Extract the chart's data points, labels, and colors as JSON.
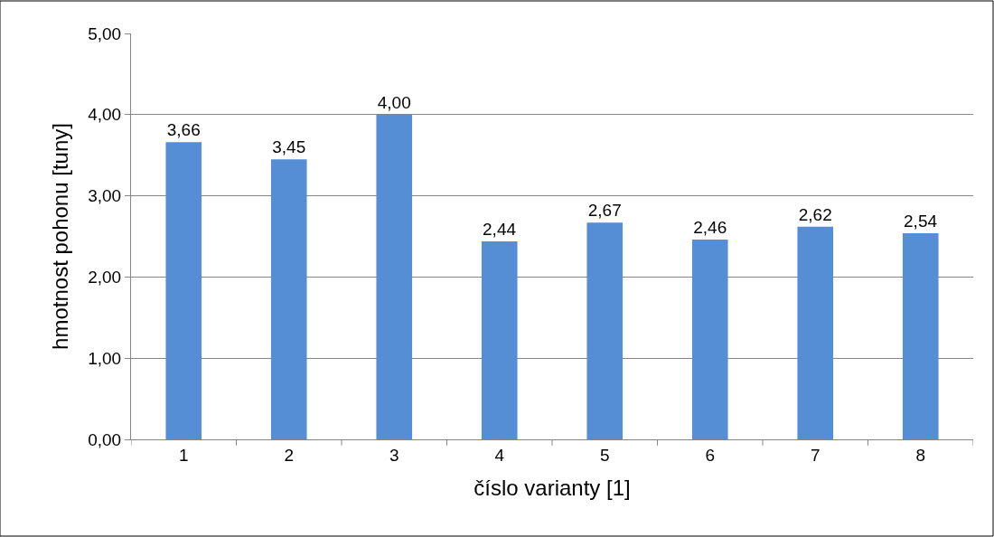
{
  "chart_data": {
    "type": "bar",
    "xlabel": "číslo varianty [1]",
    "ylabel": "hmotnost pohonu [tuny]",
    "categories": [
      "1",
      "2",
      "3",
      "4",
      "5",
      "6",
      "7",
      "8"
    ],
    "values": [
      3.66,
      3.45,
      4.0,
      2.44,
      2.67,
      2.46,
      2.62,
      2.54
    ],
    "value_labels": [
      "3,66",
      "3,45",
      "4,00",
      "2,44",
      "2,67",
      "2,46",
      "2,62",
      "2,54"
    ],
    "color": "#558ed5",
    "ylim": [
      0,
      5
    ],
    "yticks": [
      {
        "value": 0,
        "label": "0,00"
      },
      {
        "value": 1,
        "label": "1,00"
      },
      {
        "value": 2,
        "label": "2,00"
      },
      {
        "value": 3,
        "label": "3,00"
      },
      {
        "value": 4,
        "label": "4,00"
      },
      {
        "value": 5,
        "label": "5,00"
      }
    ],
    "grid": "y"
  }
}
